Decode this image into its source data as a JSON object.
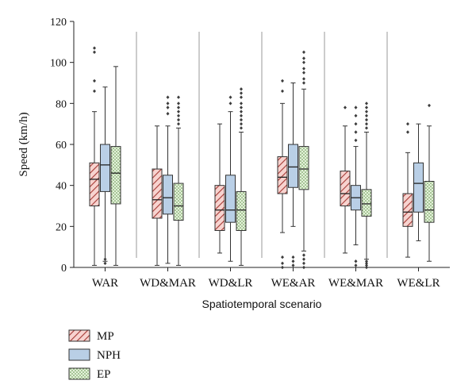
{
  "chart_data": {
    "type": "box",
    "xlabel": "Spatiotemporal scenario",
    "ylabel": "Speed (km/h)",
    "ylim": [
      0,
      120
    ],
    "yticks": [
      0,
      20,
      40,
      60,
      80,
      100,
      120
    ],
    "grid": false,
    "legend_placement": "bottom-left",
    "categories": [
      "WAR",
      "WD&MAR",
      "WD&LR",
      "WE&AR",
      "WE&MAR",
      "WE&LR"
    ],
    "series": [
      {
        "name": "MP",
        "color": "#f2b6b0",
        "edge": "#a63a35",
        "pattern": "diagonal-hatch",
        "boxes": [
          {
            "whisker_low": 1,
            "q1": 30,
            "median": 43,
            "q3": 51,
            "whisker_high": 76,
            "outliers": [
              86,
              91,
              105,
              107
            ]
          },
          {
            "whisker_low": 1,
            "q1": 24,
            "median": 33,
            "q3": 48,
            "whisker_high": 69,
            "outliers": []
          },
          {
            "whisker_low": 7,
            "q1": 18,
            "median": 28,
            "q3": 40,
            "whisker_high": 70,
            "outliers": []
          },
          {
            "whisker_low": 17,
            "q1": 36,
            "median": 44,
            "q3": 54,
            "whisker_high": 80,
            "outliers": [
              86,
              91,
              0,
              2,
              5
            ]
          },
          {
            "whisker_low": 7,
            "q1": 30,
            "median": 36,
            "q3": 47,
            "whisker_high": 69,
            "outliers": [
              78
            ]
          },
          {
            "whisker_low": 5,
            "q1": 20,
            "median": 27,
            "q3": 36,
            "whisker_high": 56,
            "outliers": [
              66,
              70
            ]
          }
        ]
      },
      {
        "name": "NPH",
        "color": "#b9cfe6",
        "edge": "#3d5a86",
        "pattern": "solid",
        "boxes": [
          {
            "whisker_low": 3,
            "q1": 37,
            "median": 50,
            "q3": 60,
            "whisker_high": 88,
            "outliers": [
              2,
              4
            ]
          },
          {
            "whisker_low": 2,
            "q1": 26,
            "median": 34,
            "q3": 45,
            "whisker_high": 69,
            "outliers": [
              75,
              78,
              80,
              83
            ]
          },
          {
            "whisker_low": 3,
            "q1": 22,
            "median": 28,
            "q3": 45,
            "whisker_high": 76,
            "outliers": [
              80,
              83
            ]
          },
          {
            "whisker_low": 20,
            "q1": 39,
            "median": 49,
            "q3": 60,
            "whisker_high": 90,
            "outliers": [
              1,
              3,
              5
            ]
          },
          {
            "whisker_low": 11,
            "q1": 28,
            "median": 34,
            "q3": 40,
            "whisker_high": 59,
            "outliers": [
              62,
              66,
              70,
              74,
              78,
              1,
              3
            ]
          },
          {
            "whisker_low": 13,
            "q1": 27,
            "median": 41,
            "q3": 51,
            "whisker_high": 70,
            "outliers": []
          }
        ]
      },
      {
        "name": "EP",
        "color": "#d6ebc6",
        "edge": "#4f7a3a",
        "pattern": "dotted",
        "boxes": [
          {
            "whisker_low": 1,
            "q1": 31,
            "median": 46,
            "q3": 59,
            "whisker_high": 98,
            "outliers": []
          },
          {
            "whisker_low": 1,
            "q1": 23,
            "median": 30,
            "q3": 41,
            "whisker_high": 68,
            "outliers": [
              70,
              72,
              74,
              76,
              78,
              80,
              83
            ]
          },
          {
            "whisker_low": 1,
            "q1": 18,
            "median": 28,
            "q3": 37,
            "whisker_high": 66,
            "outliers": [
              68,
              70,
              72,
              74,
              76,
              78,
              80,
              83,
              85,
              87
            ]
          },
          {
            "whisker_low": 8,
            "q1": 38,
            "median": 48,
            "q3": 59,
            "whisker_high": 87,
            "outliers": [
              90,
              92,
              95,
              97,
              100,
              102,
              105,
              0,
              2,
              4,
              6
            ]
          },
          {
            "whisker_low": 4,
            "q1": 25,
            "median": 31,
            "q3": 38,
            "whisker_high": 66,
            "outliers": [
              68,
              70,
              72,
              74,
              76,
              78,
              80,
              0,
              1,
              2,
              3
            ]
          },
          {
            "whisker_low": 3,
            "q1": 22,
            "median": 28,
            "q3": 42,
            "whisker_high": 69,
            "outliers": [
              79
            ]
          }
        ]
      }
    ]
  }
}
